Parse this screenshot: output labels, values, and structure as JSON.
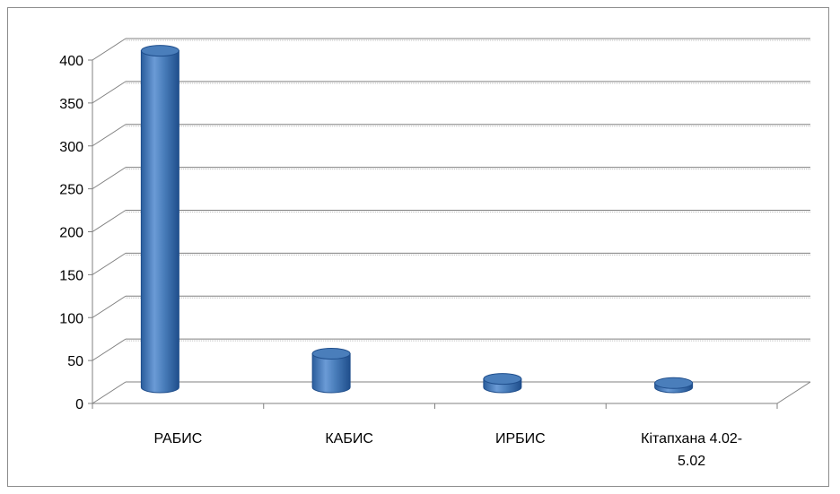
{
  "chart_data": {
    "type": "bar",
    "style": "3d-cylinder",
    "categories": [
      "РАБИС",
      "КАБИС",
      "ИРБИС",
      "Кітапхана 4.02-5.02"
    ],
    "category_label_lines": [
      [
        "РАБИС"
      ],
      [
        "КАБИС"
      ],
      [
        "ИРБИС"
      ],
      [
        "Кітапхана 4.02-",
        "5.02"
      ]
    ],
    "series": [
      {
        "values": [
          400,
          40,
          10,
          5
        ]
      }
    ],
    "ylim": [
      0,
      400
    ],
    "yticks": [
      0,
      50,
      100,
      150,
      200,
      250,
      300,
      350,
      400
    ],
    "grid": true,
    "legend": "none",
    "title": "",
    "xlabel": "",
    "ylabel": "",
    "colors": {
      "bar": "#4a7ebb",
      "bar_dark": "#1f4e8c",
      "bar_light": "#8fb4e3",
      "grid_back": "#808080",
      "grid_front": "#bfbfbf",
      "axis": "#808080"
    }
  }
}
